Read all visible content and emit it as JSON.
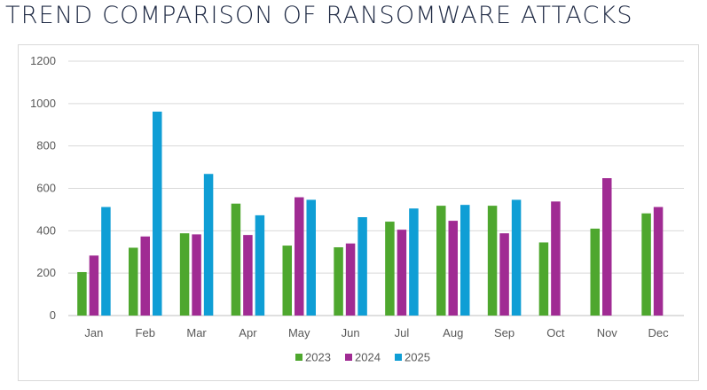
{
  "title": "TREND COMPARISON OF RANSOMWARE ATTACKS",
  "chart_data": {
    "type": "bar",
    "title": "TREND COMPARISON OF RANSOMWARE ATTACKS",
    "xlabel": "",
    "ylabel": "",
    "categories": [
      "Jan",
      "Feb",
      "Mar",
      "Apr",
      "May",
      "Jun",
      "Jul",
      "Aug",
      "Sep",
      "Oct",
      "Nov",
      "Dec"
    ],
    "ylim": [
      0,
      1200
    ],
    "yticks": [
      0,
      200,
      400,
      600,
      800,
      1000,
      1200
    ],
    "grid": true,
    "legend_position": "bottom",
    "series": [
      {
        "name": "2023",
        "color": "#4ea72e",
        "values": [
          205,
          320,
          388,
          528,
          330,
          322,
          443,
          518,
          518,
          345,
          410,
          482
        ]
      },
      {
        "name": "2024",
        "color": "#a02b93",
        "values": [
          283,
          373,
          383,
          380,
          558,
          340,
          405,
          447,
          388,
          538,
          648,
          512
        ]
      },
      {
        "name": "2025",
        "color": "#0f9ed5",
        "values": [
          512,
          962,
          668,
          473,
          546,
          464,
          505,
          522,
          546,
          null,
          null,
          null
        ]
      }
    ]
  }
}
